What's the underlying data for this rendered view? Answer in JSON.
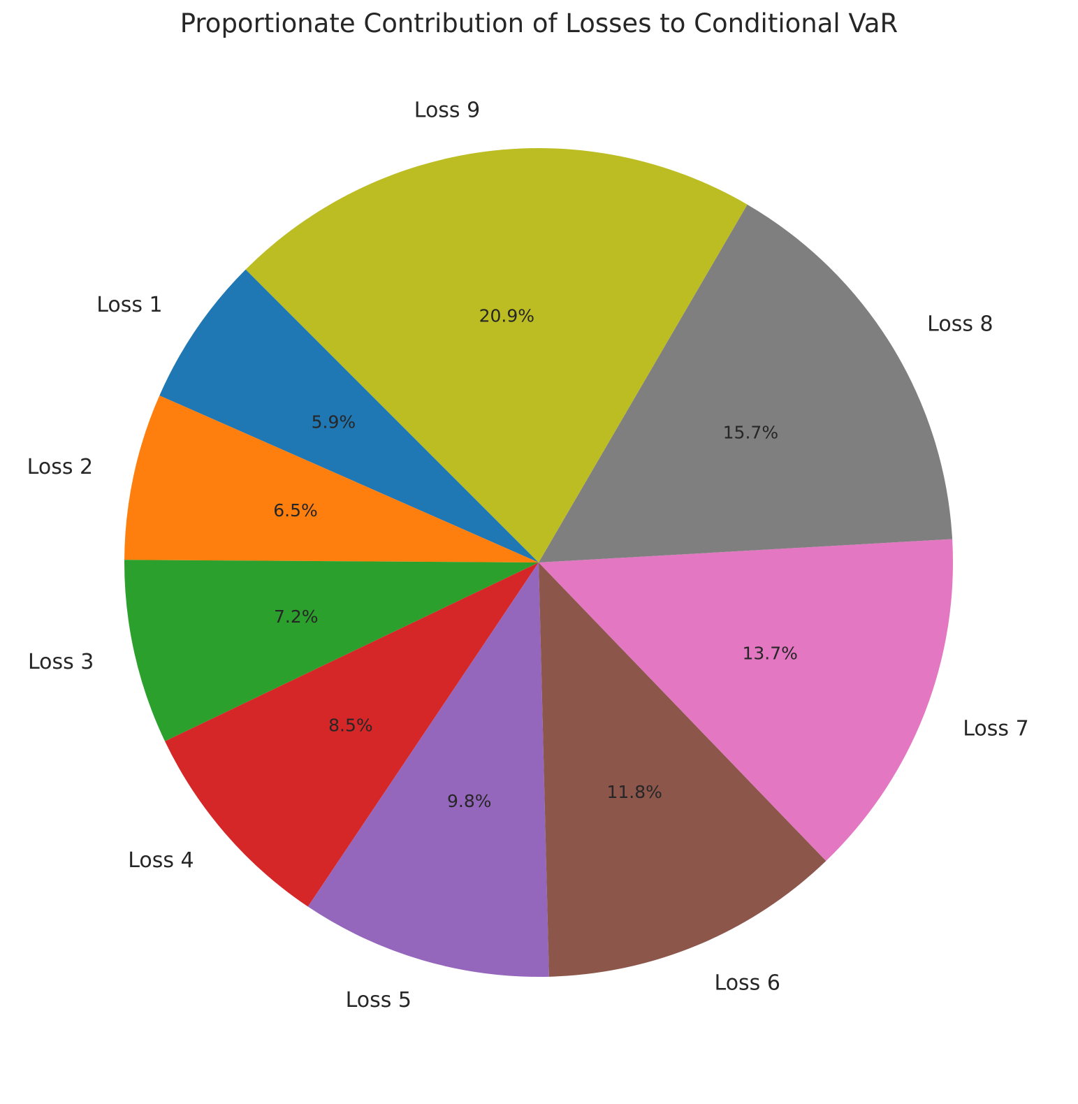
{
  "chart_data": {
    "type": "pie",
    "title": "Proportionate Contribution of Losses to Conditional VaR",
    "categories": [
      "Loss 1",
      "Loss 2",
      "Loss 3",
      "Loss 4",
      "Loss 5",
      "Loss 6",
      "Loss 7",
      "Loss 8",
      "Loss 9"
    ],
    "values": [
      5.9,
      6.5,
      7.2,
      8.5,
      9.8,
      11.8,
      13.7,
      15.7,
      20.9
    ],
    "value_labels": [
      "5.9%",
      "6.5%",
      "7.2%",
      "8.5%",
      "9.8%",
      "11.8%",
      "13.7%",
      "15.7%",
      "20.9%"
    ],
    "colors": [
      "#1f77b4",
      "#ff7f0e",
      "#2ca02c",
      "#d62728",
      "#9467bd",
      "#8c564b",
      "#e377c2",
      "#7f7f7f",
      "#bcbd22"
    ],
    "start_angle_deg": 135,
    "direction": "counterclockwise",
    "legend": "none"
  }
}
